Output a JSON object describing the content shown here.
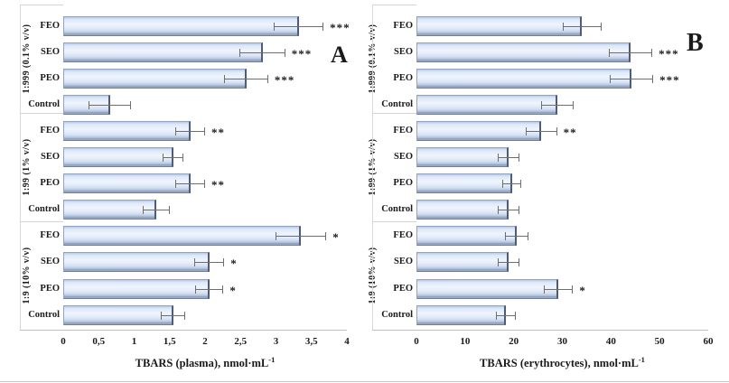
{
  "figure": {
    "panel_letters": [
      "A",
      "B"
    ],
    "colors": {
      "background": "#ffffff",
      "bar_fill_light": "#eff4fc",
      "bar_fill_mid": "#d2dff3",
      "bar_fill_dark": "#8593af",
      "bar_border": "#93a2bf",
      "bar_edge_dark": "#4e5c78",
      "error_bar": "#6e6e6e",
      "axis_line": "#bfbfbf",
      "separator_line": "#d4d4d4",
      "text": "#1a1a1a"
    }
  },
  "chart_data": [
    {
      "type": "bar",
      "orientation": "horizontal",
      "panel_label": "A",
      "xlabel_main": "TBARS (plasma), nmol·mL",
      "xlabel_sup": "-1",
      "xlim": [
        0,
        4
      ],
      "xticks": [
        "0",
        "0,5",
        "1",
        "1,5",
        "2",
        "2,5",
        "3",
        "3,5",
        "4"
      ],
      "xtick_values": [
        0,
        0.5,
        1,
        1.5,
        2,
        2.5,
        3,
        3.5,
        4
      ],
      "error_bars": true,
      "legend": "none",
      "grid": false,
      "groups": [
        {
          "label": "1:999 (0.1% v/v)",
          "bars": [
            {
              "label": "FEO",
              "value": 3.32,
              "error": 0.35,
              "sig": "***"
            },
            {
              "label": "SEO",
              "value": 2.81,
              "error": 0.32,
              "sig": "***"
            },
            {
              "label": "PEO",
              "value": 2.58,
              "error": 0.31,
              "sig": "***"
            },
            {
              "label": "Control",
              "value": 0.66,
              "error": 0.3,
              "sig": ""
            }
          ]
        },
        {
          "label": "1:99 (1% v/v)",
          "bars": [
            {
              "label": "FEO",
              "value": 1.79,
              "error": 0.21,
              "sig": "**"
            },
            {
              "label": "SEO",
              "value": 1.55,
              "error": 0.15,
              "sig": ""
            },
            {
              "label": "PEO",
              "value": 1.79,
              "error": 0.21,
              "sig": "**"
            },
            {
              "label": "Control",
              "value": 1.31,
              "error": 0.19,
              "sig": ""
            }
          ]
        },
        {
          "label": "1:9 (10% v/v)",
          "bars": [
            {
              "label": "FEO",
              "value": 3.35,
              "error": 0.36,
              "sig": "*"
            },
            {
              "label": "SEO",
              "value": 2.06,
              "error": 0.21,
              "sig": "*"
            },
            {
              "label": "PEO",
              "value": 2.06,
              "error": 0.2,
              "sig": "*"
            },
            {
              "label": "Control",
              "value": 1.55,
              "error": 0.17,
              "sig": ""
            }
          ]
        }
      ]
    },
    {
      "type": "bar",
      "orientation": "horizontal",
      "panel_label": "B",
      "xlabel_main": "TBARS (erythrocytes), nmol·mL",
      "xlabel_sup": "-1",
      "xlim": [
        0,
        60
      ],
      "xticks": [
        "0",
        "10",
        "20",
        "30",
        "40",
        "50",
        "60"
      ],
      "xtick_values": [
        0,
        10,
        20,
        30,
        40,
        50,
        60
      ],
      "error_bars": true,
      "legend": "none",
      "grid": false,
      "groups": [
        {
          "label": "1:999 (0.1% v/v)",
          "bars": [
            {
              "label": "FEO",
              "value": 34.0,
              "error": 4.0,
              "sig": ""
            },
            {
              "label": "SEO",
              "value": 44.0,
              "error": 4.5,
              "sig": "***"
            },
            {
              "label": "PEO",
              "value": 44.2,
              "error": 4.5,
              "sig": "***"
            },
            {
              "label": "Control",
              "value": 29.0,
              "error": 3.3,
              "sig": ""
            }
          ]
        },
        {
          "label": "1:99 (1% v/v)",
          "bars": [
            {
              "label": "FEO",
              "value": 25.7,
              "error": 3.2,
              "sig": "**"
            },
            {
              "label": "SEO",
              "value": 19.0,
              "error": 2.2,
              "sig": ""
            },
            {
              "label": "PEO",
              "value": 19.6,
              "error": 2.0,
              "sig": ""
            },
            {
              "label": "Control",
              "value": 18.9,
              "error": 2.2,
              "sig": ""
            }
          ]
        },
        {
          "label": "1:9 (10% v/v)",
          "bars": [
            {
              "label": "FEO",
              "value": 20.6,
              "error": 2.4,
              "sig": ""
            },
            {
              "label": "SEO",
              "value": 18.9,
              "error": 2.2,
              "sig": ""
            },
            {
              "label": "PEO",
              "value": 29.2,
              "error": 3.0,
              "sig": "*"
            },
            {
              "label": "Control",
              "value": 18.4,
              "error": 2.0,
              "sig": ""
            }
          ]
        }
      ]
    }
  ]
}
